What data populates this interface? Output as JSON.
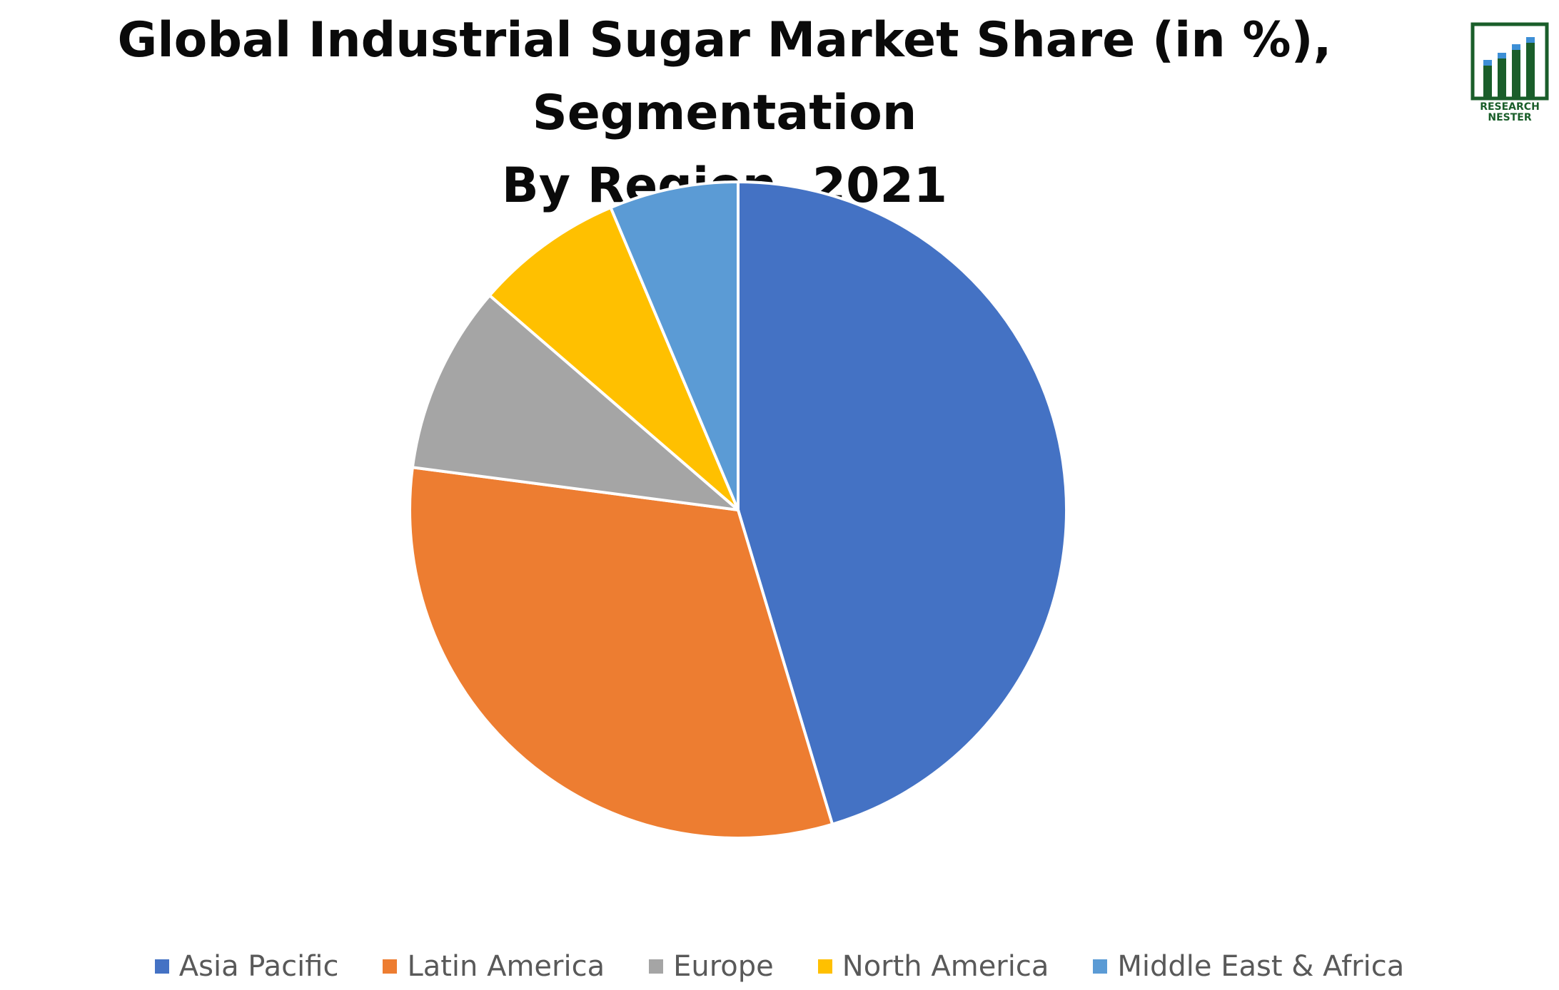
{
  "chart_data": {
    "type": "pie",
    "title": [
      "Global Industrial Sugar Market Share (in %), Segmentation",
      "By Region, 2021"
    ],
    "categories": [
      "Asia Pacific",
      "Latin America",
      "Europe",
      "North America",
      "Middle East & Africa"
    ],
    "values": [
      46.5,
      32.5,
      9.5,
      7.5,
      6.5
    ],
    "colors": [
      "#4472C4",
      "#ED7D31",
      "#A5A5A5",
      "#FFC000",
      "#5B9BD5"
    ],
    "start_angle": "12 o'clock, clockwise",
    "legend_position": "bottom"
  },
  "logo": {
    "text_line1": "RESEARCH",
    "text_line2": "NESTER",
    "color": "#1a5e2a"
  }
}
